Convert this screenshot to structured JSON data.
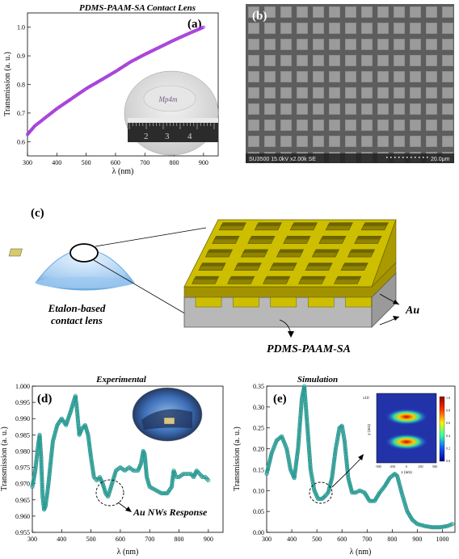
{
  "figure": {
    "panel_a": {
      "tag": "(a)",
      "title": "PDMS-PAAM-SA Contact Lens",
      "xlabel": "λ (nm)",
      "ylabel": "Transmission (a. u.)",
      "inset_label": "Mp4m",
      "ruler_numbers": [
        "2",
        "3",
        "4"
      ]
    },
    "panel_b": {
      "tag": "(b)",
      "caption": "SU3500 15.0kV x2.00k SE",
      "scale": "20.0μm"
    },
    "panel_c": {
      "tag": "(c)",
      "lens_label_1": "Etalon-based",
      "lens_label_2": "contact lens",
      "au_label": "Au",
      "substrate_label": "PDMS-PAAM-SA"
    },
    "panel_d": {
      "tag": "(d)",
      "title": "Experimental",
      "xlabel": "λ (nm)",
      "ylabel": "Transmission (a. u.)",
      "annotation": "Au NWs Response"
    },
    "panel_e": {
      "tag": "(e)",
      "title": "Simulation",
      "xlabel": "λ (nm)",
      "ylabel": "Transmission (a. u.)",
      "inset_exp": "x10",
      "inset_ylabel": "y (nm)",
      "inset_xlabel": "x (nm)",
      "inset_xticks": [
        "-500",
        "-250",
        "0",
        "250",
        "500"
      ],
      "inset_cticks": [
        "1.0",
        "0.8",
        "0.6",
        "0.4",
        "0.2",
        "0.0"
      ]
    }
  },
  "colors": {
    "purple": "#a238d8",
    "teal": "#2a9a93",
    "gold": "#c8b400",
    "gray": "#b6b6b6"
  },
  "chart_data": [
    {
      "type": "line",
      "title": "PDMS-PAAM-SA Contact Lens",
      "xlabel": "λ (nm)",
      "ylabel": "Transmission (a. u.)",
      "xlim": [
        300,
        950
      ],
      "ylim": [
        0.55,
        1.05
      ],
      "xticks": [
        300,
        400,
        500,
        600,
        700,
        800,
        900
      ],
      "yticks": [
        0.6,
        0.7,
        0.8,
        0.9,
        1.0
      ],
      "x": [
        300,
        325,
        350,
        400,
        450,
        500,
        550,
        600,
        650,
        700,
        750,
        800,
        850,
        900
      ],
      "y": [
        0.625,
        0.655,
        0.675,
        0.715,
        0.75,
        0.785,
        0.815,
        0.845,
        0.878,
        0.905,
        0.93,
        0.955,
        0.978,
        1.0
      ]
    },
    {
      "type": "line",
      "title": "Experimental",
      "xlabel": "λ (nm)",
      "ylabel": "Transmission (a. u.)",
      "xlim": [
        300,
        950
      ],
      "ylim": [
        0.955,
        1.0
      ],
      "xticks": [
        300,
        400,
        500,
        600,
        700,
        800,
        900
      ],
      "yticks": [
        0.955,
        0.96,
        0.965,
        0.97,
        0.975,
        0.98,
        0.985,
        0.99,
        0.995,
        1.0
      ],
      "x": [
        300,
        310,
        320,
        325,
        330,
        335,
        340,
        345,
        355,
        370,
        385,
        400,
        415,
        430,
        440,
        447,
        452,
        460,
        470,
        480,
        490,
        500,
        510,
        520,
        530,
        540,
        550,
        558,
        565,
        575,
        585,
        600,
        615,
        630,
        645,
        660,
        670,
        678,
        683,
        690,
        700,
        720,
        740,
        760,
        775,
        782,
        790,
        800,
        815,
        830,
        840,
        850,
        860,
        870,
        880,
        890,
        900
      ],
      "y": [
        0.969,
        0.974,
        0.982,
        0.985,
        0.978,
        0.966,
        0.962,
        0.963,
        0.97,
        0.983,
        0.988,
        0.99,
        0.988,
        0.992,
        0.995,
        0.997,
        0.993,
        0.985,
        0.987,
        0.988,
        0.985,
        0.978,
        0.972,
        0.971,
        0.972,
        0.97,
        0.967,
        0.966,
        0.968,
        0.971,
        0.974,
        0.975,
        0.974,
        0.975,
        0.974,
        0.974,
        0.976,
        0.98,
        0.979,
        0.972,
        0.969,
        0.968,
        0.967,
        0.967,
        0.969,
        0.974,
        0.972,
        0.972,
        0.973,
        0.973,
        0.973,
        0.972,
        0.974,
        0.973,
        0.972,
        0.972,
        0.971
      ]
    },
    {
      "type": "line",
      "title": "Simulation",
      "xlabel": "λ (nm)",
      "ylabel": "Transmission (a. u.)",
      "xlim": [
        300,
        1050
      ],
      "ylim": [
        0.0,
        0.35
      ],
      "xticks": [
        300,
        400,
        500,
        600,
        700,
        800,
        900,
        1000
      ],
      "yticks": [
        0.0,
        0.05,
        0.1,
        0.15,
        0.2,
        0.25,
        0.3,
        0.35
      ],
      "x": [
        300,
        320,
        340,
        360,
        380,
        395,
        410,
        425,
        440,
        450,
        460,
        475,
        490,
        505,
        520,
        530,
        545,
        560,
        575,
        590,
        600,
        610,
        625,
        640,
        655,
        670,
        690,
        710,
        730,
        750,
        770,
        790,
        810,
        820,
        840,
        860,
        880,
        900,
        930,
        960,
        990,
        1020,
        1040
      ],
      "y": [
        0.14,
        0.19,
        0.22,
        0.23,
        0.2,
        0.15,
        0.13,
        0.2,
        0.32,
        0.35,
        0.27,
        0.15,
        0.1,
        0.08,
        0.08,
        0.085,
        0.095,
        0.13,
        0.2,
        0.25,
        0.255,
        0.22,
        0.13,
        0.095,
        0.095,
        0.1,
        0.095,
        0.075,
        0.075,
        0.095,
        0.11,
        0.13,
        0.14,
        0.135,
        0.09,
        0.05,
        0.03,
        0.02,
        0.015,
        0.012,
        0.012,
        0.015,
        0.02
      ]
    }
  ]
}
